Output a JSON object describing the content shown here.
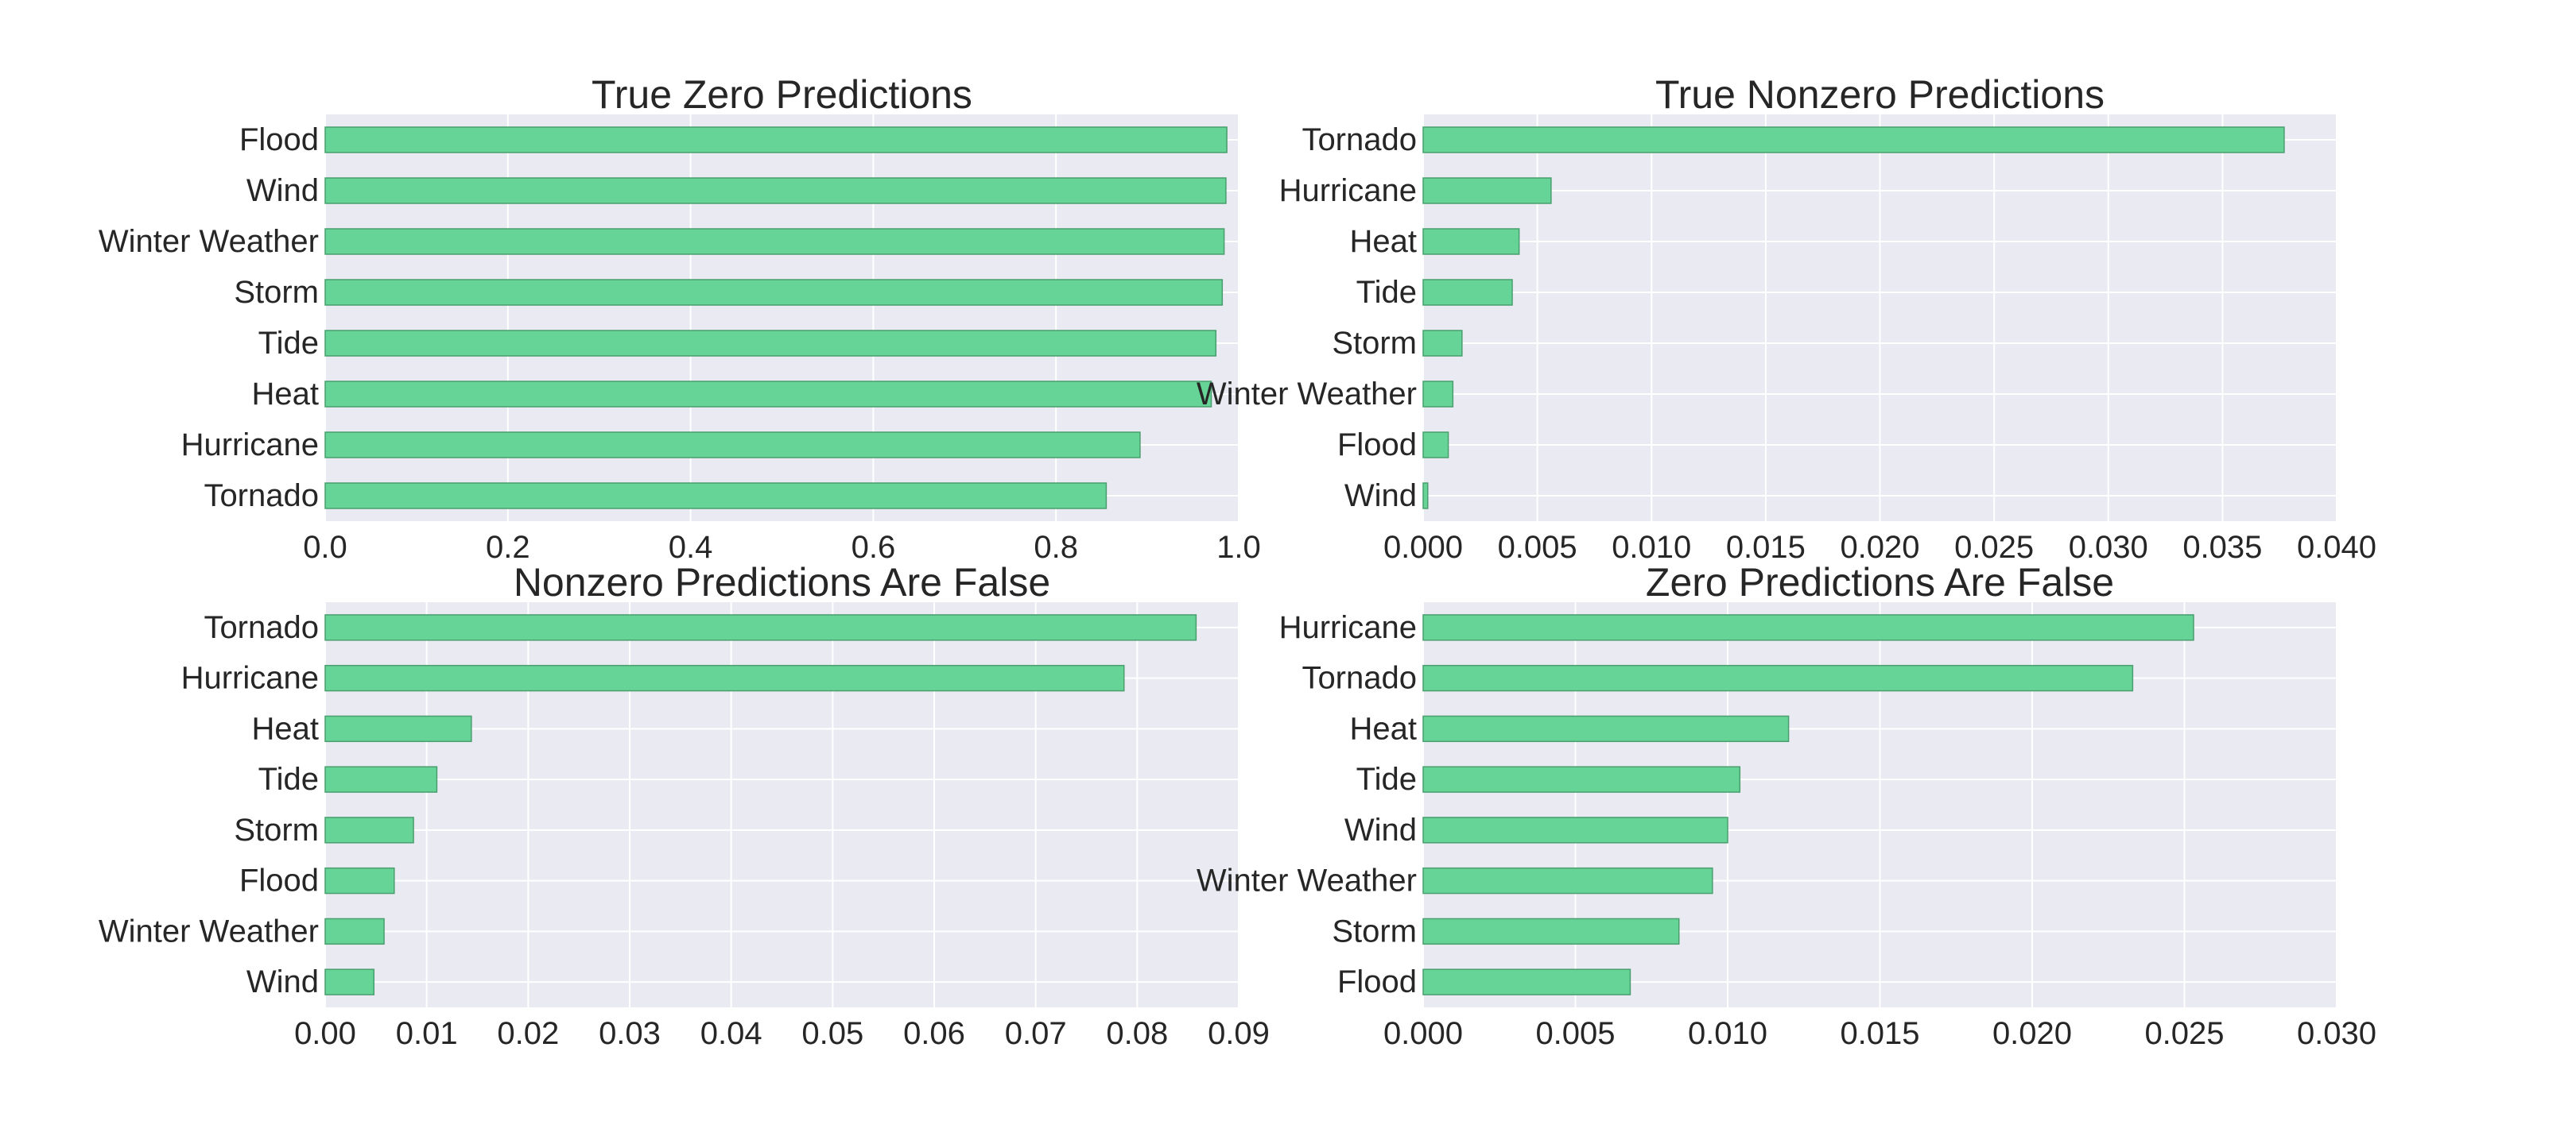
{
  "chart_data": [
    {
      "type": "bar",
      "orientation": "horizontal",
      "title": "True Zero Predictions",
      "categories": [
        "Flood",
        "Wind",
        "Winter Weather",
        "Storm",
        "Tide",
        "Heat",
        "Hurricane",
        "Tornado"
      ],
      "values": [
        0.987,
        0.986,
        0.984,
        0.982,
        0.975,
        0.97,
        0.892,
        0.855
      ],
      "xlim": [
        0,
        1.0
      ],
      "xticks": [
        "0.0",
        "0.2",
        "0.4",
        "0.6",
        "0.8",
        "1.0"
      ],
      "xtick_values": [
        0,
        0.2,
        0.4,
        0.6,
        0.8,
        1.0
      ],
      "color": "#66d496",
      "grid": true
    },
    {
      "type": "bar",
      "orientation": "horizontal",
      "title": "True Nonzero Predictions",
      "categories": [
        "Tornado",
        "Hurricane",
        "Heat",
        "Tide",
        "Storm",
        "Winter Weather",
        "Flood",
        "Wind"
      ],
      "values": [
        0.0377,
        0.0056,
        0.0042,
        0.0039,
        0.0017,
        0.0013,
        0.0011,
        0.0002
      ],
      "xlim": [
        0,
        0.04
      ],
      "xticks": [
        "0.000",
        "0.005",
        "0.010",
        "0.015",
        "0.020",
        "0.025",
        "0.030",
        "0.035",
        "0.040"
      ],
      "xtick_values": [
        0,
        0.005,
        0.01,
        0.015,
        0.02,
        0.025,
        0.03,
        0.035,
        0.04
      ],
      "color": "#66d496",
      "grid": true
    },
    {
      "type": "bar",
      "orientation": "horizontal",
      "title": "Nonzero Predictions Are False",
      "categories": [
        "Tornado",
        "Hurricane",
        "Heat",
        "Tide",
        "Storm",
        "Flood",
        "Winter Weather",
        "Wind"
      ],
      "values": [
        0.0858,
        0.0787,
        0.0144,
        0.011,
        0.0087,
        0.0068,
        0.0058,
        0.0048
      ],
      "xlim": [
        0,
        0.09
      ],
      "xticks": [
        "0.00",
        "0.01",
        "0.02",
        "0.03",
        "0.04",
        "0.05",
        "0.06",
        "0.07",
        "0.08",
        "0.09"
      ],
      "xtick_values": [
        0,
        0.01,
        0.02,
        0.03,
        0.04,
        0.05,
        0.06,
        0.07,
        0.08,
        0.09
      ],
      "color": "#66d496",
      "grid": true
    },
    {
      "type": "bar",
      "orientation": "horizontal",
      "title": "Zero Predictions Are False",
      "categories": [
        "Hurricane",
        "Tornado",
        "Heat",
        "Tide",
        "Wind",
        "Winter Weather",
        "Storm",
        "Flood"
      ],
      "values": [
        0.0253,
        0.0233,
        0.012,
        0.0104,
        0.01,
        0.0095,
        0.0084,
        0.0068
      ],
      "xlim": [
        0,
        0.03
      ],
      "xticks": [
        "0.000",
        "0.005",
        "0.010",
        "0.015",
        "0.020",
        "0.025",
        "0.030"
      ],
      "xtick_values": [
        0,
        0.005,
        0.01,
        0.015,
        0.02,
        0.025,
        0.03
      ],
      "color": "#66d496",
      "grid": true
    }
  ]
}
